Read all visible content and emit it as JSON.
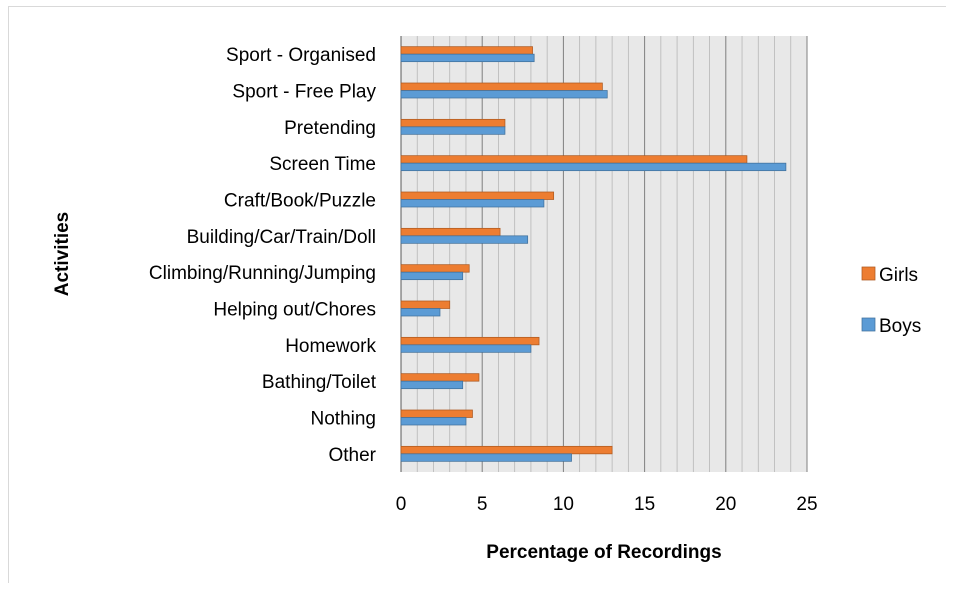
{
  "chart_data": {
    "type": "bar",
    "orientation": "horizontal",
    "title": "",
    "xlabel": "Percentage of Recordings",
    "ylabel": "Activities",
    "xlim": [
      0,
      25
    ],
    "xticks": [
      "0",
      "5",
      "10",
      "15",
      "20",
      "25"
    ],
    "grid": true,
    "legend_position": "right",
    "categories": [
      "Sport - Organised",
      "Sport - Free Play",
      "Pretending",
      "Screen Time",
      "Craft/Book/Puzzle",
      "Building/Car/Train/Doll",
      "Climbing/Running/Jumping",
      "Helping out/Chores",
      "Homework",
      "Bathing/Toilet",
      "Nothing",
      "Other"
    ],
    "series": [
      {
        "name": "Girls",
        "color": "#ED7D31",
        "values": [
          8.1,
          12.4,
          6.4,
          21.3,
          9.4,
          6.1,
          4.2,
          3.0,
          8.5,
          4.8,
          4.4,
          13.0
        ]
      },
      {
        "name": "Boys",
        "color": "#5B9BD5",
        "values": [
          8.2,
          12.7,
          6.4,
          23.7,
          8.8,
          7.8,
          3.8,
          2.4,
          8.0,
          3.8,
          4.0,
          10.5
        ]
      }
    ]
  }
}
